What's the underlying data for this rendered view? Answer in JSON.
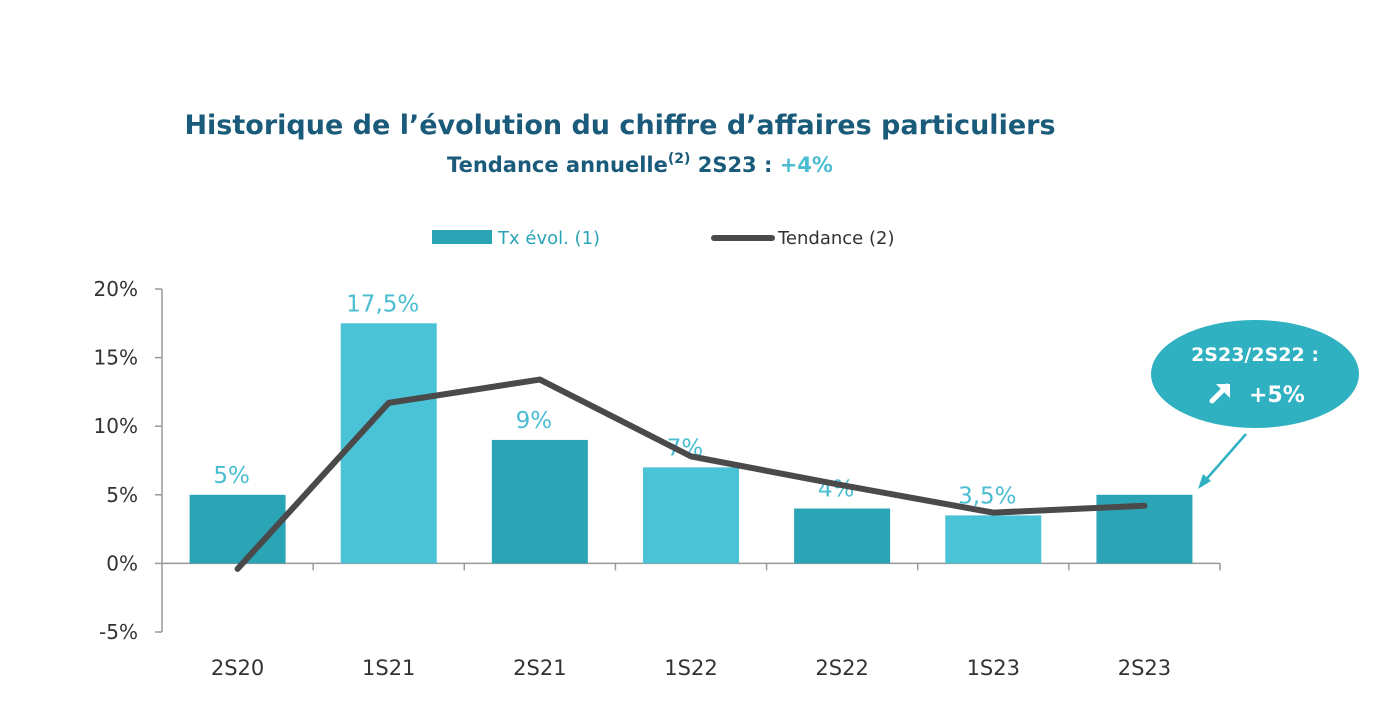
{
  "chart_data": {
    "type": "bar",
    "title": "Historique de l’évolution du chiffre d’affaires particuliers",
    "subtitle": {
      "prefix": "Tendance annuelle",
      "superscript": "(2)",
      "middle": " 2S23 : ",
      "value": "+4%"
    },
    "categories": [
      "2S20",
      "1S21",
      "2S21",
      "1S22",
      "2S22",
      "1S23",
      "2S23"
    ],
    "series": [
      {
        "name": "Tx évol. (1)",
        "kind": "bar",
        "values": [
          5,
          17.5,
          9,
          7,
          4,
          3.5,
          5
        ],
        "data_labels": [
          "5%",
          "17,5%",
          "9%",
          "7%",
          "4%",
          "3,5%",
          ""
        ]
      },
      {
        "name": "Tendance (2)",
        "kind": "line",
        "values": [
          -0.4,
          11.7,
          13.4,
          7.8,
          5.7,
          3.7,
          4.2
        ]
      }
    ],
    "ylim": [
      -5,
      20
    ],
    "yticks": [
      -5,
      0,
      5,
      10,
      15,
      20
    ],
    "ytick_labels": [
      "-5%",
      "0%",
      "5%",
      "10%",
      "15%",
      "20%"
    ],
    "legend_position": "top",
    "grid": false,
    "colors": {
      "bar_dark": "#2ba4b6",
      "bar_light": "#4bc3d6",
      "line": "#4a4a4a",
      "label": "#4bbdd2",
      "title": "#1a5a7a",
      "callout": "#2fb1c1"
    },
    "callout": {
      "line1": "2S23/2S22 :",
      "arrow_icon": "arrow-up-right-icon",
      "value": "+5%"
    }
  }
}
